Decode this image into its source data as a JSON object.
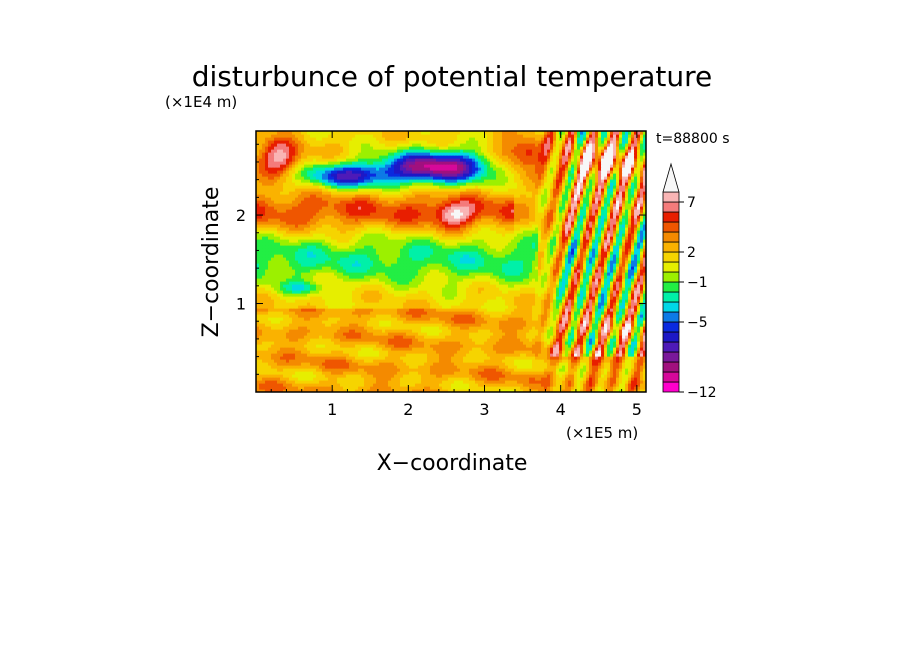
{
  "chart_data": {
    "type": "heatmap",
    "title": "disturbunce of potential temperature",
    "xlabel": "X−coordinate",
    "ylabel": "Z−coordinate",
    "x_unit": "(×1E5 m)",
    "y_unit": "(×1E4 m)",
    "time_label": "t=88800 s",
    "xlim": [
      0,
      5.12
    ],
    "ylim": [
      0,
      2.95
    ],
    "x_ticks": [
      1,
      2,
      3,
      4,
      5
    ],
    "y_ticks": [
      1,
      2
    ],
    "x_tick_labels": [
      "1",
      "2",
      "3",
      "4",
      "5"
    ],
    "y_tick_labels": [
      "1",
      "2"
    ],
    "colorbar": {
      "bounds": [
        -12,
        -11,
        -10,
        -9,
        -8,
        -7,
        -6,
        -5,
        -4,
        -3,
        -2,
        -1,
        0,
        1,
        2,
        3,
        4,
        5,
        6,
        7,
        8,
        9
      ],
      "tick_labels": [
        "−12",
        "−5",
        "−1",
        "2",
        "7"
      ],
      "tick_values": [
        -12,
        -5,
        -1,
        2,
        7
      ],
      "extend": "max",
      "colors": [
        "#ff00cc",
        "#d6089a",
        "#a1107e",
        "#7a189a",
        "#4e1ab8",
        "#1d18c6",
        "#0a2adf",
        "#0d7ae6",
        "#00d7e6",
        "#00f0a8",
        "#22ee44",
        "#9cf000",
        "#e6ee00",
        "#f6d400",
        "#fab200",
        "#f48a00",
        "#ef5600",
        "#e81e00",
        "#f47b7b",
        "#f9b5b5",
        "#f7f7f7"
      ]
    }
  }
}
